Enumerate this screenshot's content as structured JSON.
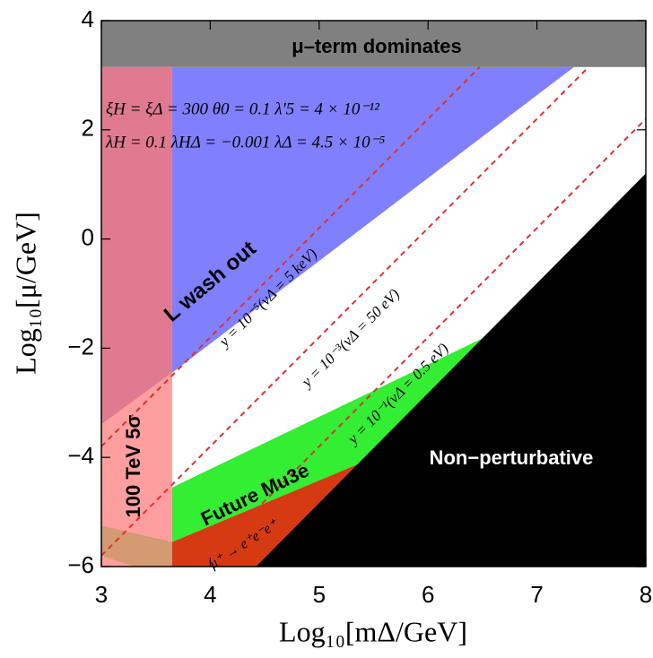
{
  "chart_data": {
    "type": "region",
    "xlabel": "Log₁₀[mΔ/GeV]",
    "ylabel": "Log₁₀[μ/GeV]",
    "xlim": [
      3,
      8
    ],
    "ylim": [
      -6,
      4
    ],
    "xticks": [
      3,
      4,
      5,
      6,
      7,
      8
    ],
    "yticks": [
      {
        "value": -6,
        "label": "−6"
      },
      {
        "value": -4,
        "label": "−4"
      },
      {
        "value": -2,
        "label": "−2"
      },
      0,
      2,
      4
    ],
    "regions": [
      {
        "color": "#e07a90",
        "x": [
          3,
          3.65,
          3.65,
          3
        ],
        "y": [
          3.15,
          3.15,
          -2.45,
          -3.4
        ]
      },
      {
        "label": "L wash out",
        "color": "#8080ff",
        "x": [
          3.65,
          7.34,
          3.65
        ],
        "y": [
          3.15,
          3.15,
          -2.45
        ]
      },
      {
        "label": "100 TeV 5σ",
        "color": "#ff9e9e",
        "x": [
          3,
          3.65,
          3.65,
          3
        ],
        "y": [
          -3.4,
          -2.45,
          -6,
          -6
        ]
      },
      {
        "color": "#d49a72",
        "x": [
          3,
          3.65,
          3.65,
          3.3,
          3
        ],
        "y": [
          -5.25,
          -5.55,
          -6,
          -6,
          -5.8
        ]
      },
      {
        "label": "Future Mu3e",
        "color": "#33ee33",
        "x": [
          3.65,
          6.5,
          5.35,
          3.65
        ],
        "y": [
          -4.55,
          -1.82,
          -4.13,
          -5.55
        ]
      },
      {
        "label": "μ⁺ → e⁺e⁻e⁺",
        "color": "#d63a12",
        "x": [
          3.65,
          5.35,
          4.42,
          3.65
        ],
        "y": [
          -5.55,
          -4.13,
          -6,
          -6
        ]
      },
      {
        "label": "Non−perturbative",
        "color": "#000000",
        "x": [
          4.42,
          8,
          8
        ],
        "y": [
          -6,
          1.2,
          -6
        ]
      },
      {
        "label": "μ–term dominates",
        "color": "#808080",
        "x": [
          3,
          8,
          8,
          3
        ],
        "y": [
          4,
          4,
          3.15,
          3.15
        ]
      }
    ],
    "lines": [
      {
        "label": "y = 10⁻⁵(vΔ = 5 keV)",
        "color": "#e03030",
        "x": [
          3,
          6.475
        ],
        "y": [
          -3.8,
          3.15
        ]
      },
      {
        "label": "y = 10⁻³(vΔ = 50 eV)",
        "color": "#e03030",
        "x": [
          3,
          7.475
        ],
        "y": [
          -5.8,
          3.15
        ]
      },
      {
        "label": "y = 10⁻¹(vΔ = 0.5 eV)",
        "color": "#e03030",
        "x": [
          3.9,
          8
        ],
        "y": [
          -6,
          2.2
        ]
      }
    ],
    "annotations": [
      "ξH = ξΔ = 300   θ0 = 0.1   λ′5 = 4 × 10⁻¹²",
      "λH = 0.1   λHΔ = −0.001   λΔ = 4.5 × 10⁻⁵"
    ]
  }
}
